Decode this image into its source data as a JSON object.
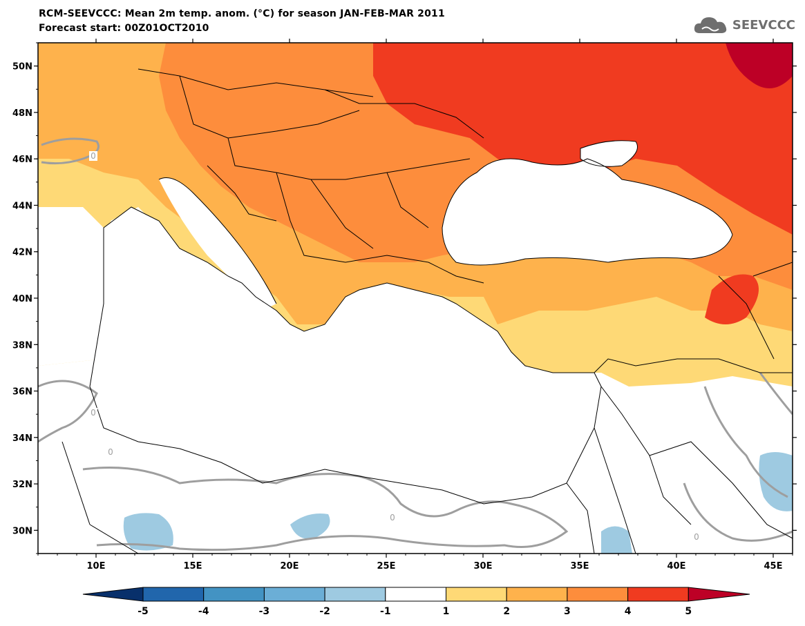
{
  "title": {
    "line1": "RCM-SEEVCCC: Mean 2m temp. anom. (°C) for season JAN-FEB-MAR 2011",
    "line2": "Forecast start: 00Z01OCT2010"
  },
  "logo": {
    "text": "SEEVCCC",
    "icon": "cloud-icon"
  },
  "axes": {
    "lat_labels": [
      "50N",
      "48N",
      "46N",
      "44N",
      "42N",
      "40N",
      "38N",
      "36N",
      "34N",
      "32N",
      "30N"
    ],
    "lon_labels": [
      "10E",
      "15E",
      "20E",
      "25E",
      "30E",
      "35E",
      "40E",
      "45E"
    ],
    "lat_range": [
      29,
      51
    ],
    "lon_range": [
      7,
      46
    ]
  },
  "contour_label": "0",
  "colorbar": {
    "levels": [
      "-5",
      "-4",
      "-3",
      "-2",
      "-1",
      "1",
      "2",
      "3",
      "4",
      "5"
    ],
    "colors": [
      "#08306b",
      "#2166ac",
      "#4393c3",
      "#6baed6",
      "#9ecae1",
      "#ffffff",
      "#fed976",
      "#feb24c",
      "#fd8d3c",
      "#f03b20",
      "#bd0026"
    ]
  },
  "colors": {
    "sea": "#ffffff",
    "border": "#000000",
    "zero_contour": "#9e9e9e"
  }
}
